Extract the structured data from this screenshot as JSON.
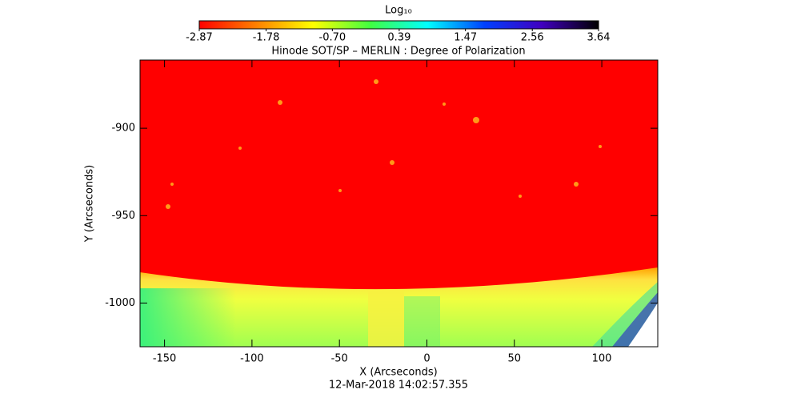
{
  "chart_data": {
    "type": "image",
    "title": "Hinode SOT/SP – MERLIN : Degree of Polarization",
    "subtitle": "12-Mar-2018 14:02:57.355",
    "x_label": "X (Arcseconds)",
    "y_label": "Y (Arcseconds)",
    "xlim": [
      -164,
      132
    ],
    "ylim": [
      -1025,
      -861
    ],
    "xticks": [
      -150,
      -100,
      -50,
      0,
      50,
      100
    ],
    "yticks": [
      -900,
      -950,
      -1000
    ],
    "colorbar_label": "Log₁₀",
    "clim": [
      -2.87,
      3.64
    ],
    "cticks": [
      -2.87,
      -1.78,
      {
        "value": -0.7,
        "label": "-0.70"
      },
      0.39,
      1.47,
      2.56,
      3.64
    ],
    "colormap": [
      "#ff0000",
      "#ff8000",
      "#ffff00",
      "#40ff40",
      "#00ffff",
      "#0040ff",
      "#4000c0",
      "#000000"
    ]
  }
}
